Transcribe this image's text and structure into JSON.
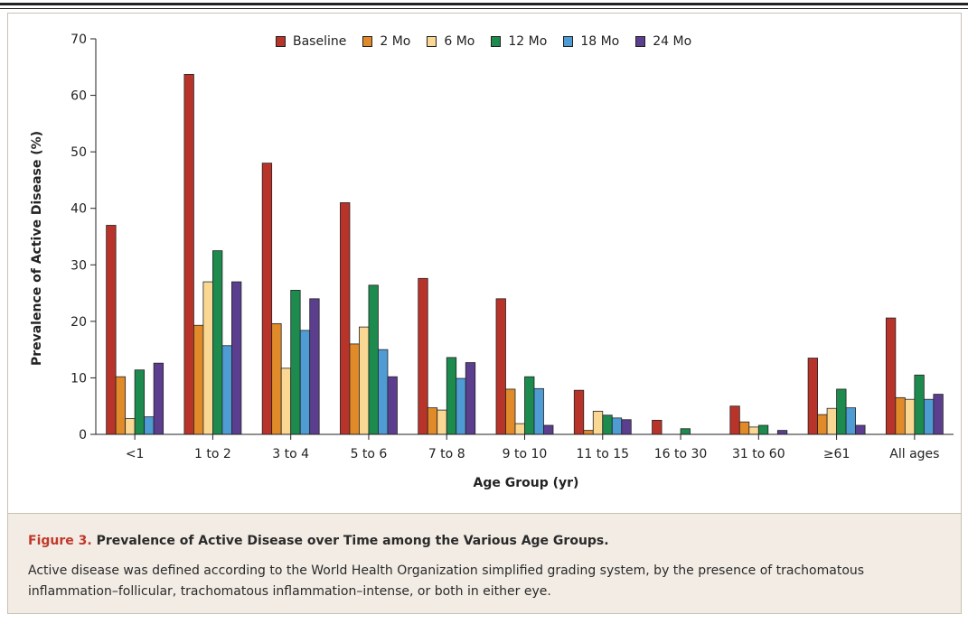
{
  "figure": {
    "label": "Figure 3.",
    "title": "Prevalence of Active Disease over Time among the Various Age Groups.",
    "description": "Active disease was defined according to the World Health Organization simplified grading system, by the presence of trachomatous inflammation–follicular, trachomatous inflammation–intense, or both in either eye."
  },
  "chart_data": {
    "type": "bar",
    "title": "",
    "xlabel": "Age Group (yr)",
    "ylabel": "Prevalence of Active Disease (%)",
    "ylim": [
      0,
      70
    ],
    "yticks": [
      "0",
      "10",
      "20",
      "30",
      "40",
      "50",
      "60",
      "70"
    ],
    "grid": false,
    "legend_position": "top",
    "categories": [
      "<1",
      "1 to 2",
      "3 to 4",
      "5 to 6",
      "7 to 8",
      "9 to 10",
      "11 to 15",
      "16 to 30",
      "31 to 60",
      "≥61",
      "All ages"
    ],
    "series": [
      {
        "name": "Baseline",
        "color": "#b8342a",
        "values": [
          37,
          63.7,
          48,
          41,
          27.6,
          24,
          7.8,
          2.5,
          5,
          13.5,
          20.6
        ]
      },
      {
        "name": "2 Mo",
        "color": "#e08a2a",
        "values": [
          10.2,
          19.3,
          19.6,
          16,
          4.7,
          8,
          0.7,
          0,
          2.2,
          3.5,
          6.5
        ]
      },
      {
        "name": "6 Mo",
        "color": "#fbd794",
        "values": [
          2.8,
          27,
          11.7,
          19,
          4.3,
          1.9,
          4.1,
          0,
          1.3,
          4.6,
          6.2
        ]
      },
      {
        "name": "12 Mo",
        "color": "#1d8a4e",
        "values": [
          11.4,
          32.5,
          25.5,
          26.4,
          13.6,
          10.2,
          3.4,
          1,
          1.6,
          8,
          10.5
        ]
      },
      {
        "name": "18 Mo",
        "color": "#4f9bd3",
        "values": [
          3.1,
          15.7,
          18.4,
          15,
          9.9,
          8.1,
          2.9,
          0,
          0,
          4.7,
          6.2
        ]
      },
      {
        "name": "24 Mo",
        "color": "#5c3e8e",
        "values": [
          12.6,
          27,
          24,
          10.2,
          12.7,
          1.6,
          2.6,
          0,
          0.7,
          1.6,
          7.1
        ]
      }
    ]
  }
}
